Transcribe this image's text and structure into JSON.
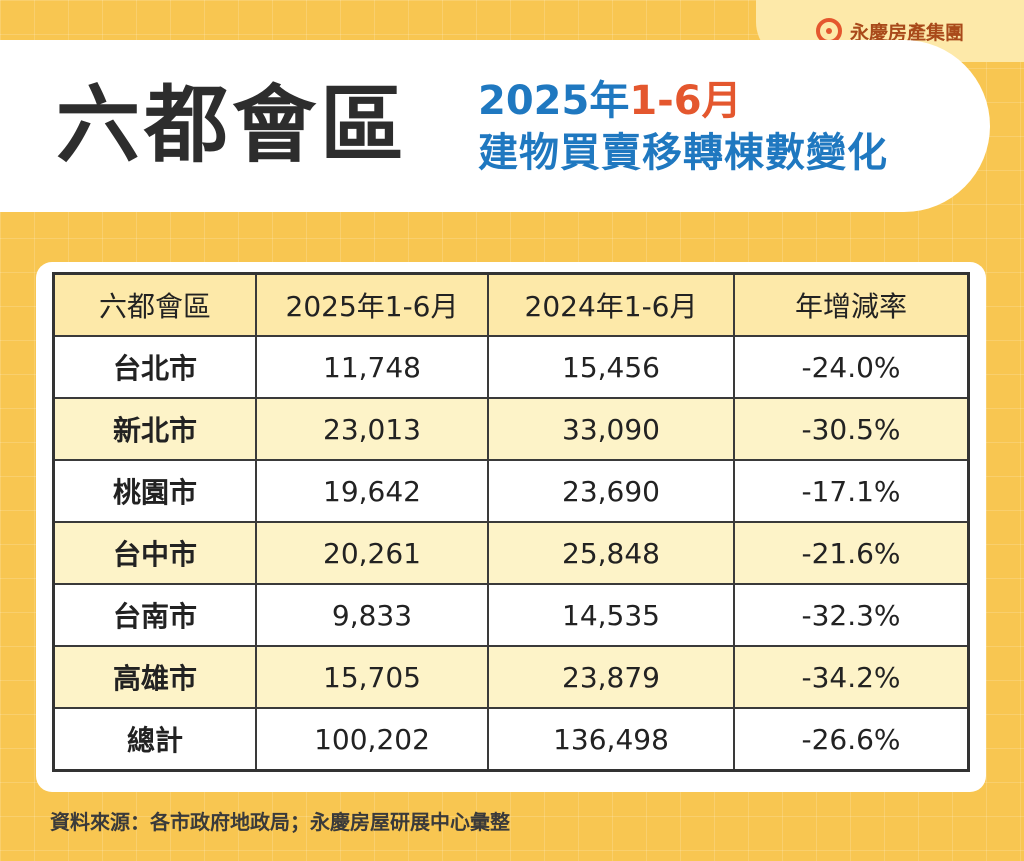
{
  "brand": {
    "name": "永慶房產集團",
    "icon": "yongqing-logo-icon"
  },
  "header": {
    "title": "六都會區",
    "subtitle_period_year": "2025年",
    "subtitle_period_range": "1-6月",
    "subtitle_line2": "建物買賣移轉棟數變化"
  },
  "table": {
    "columns": [
      "六都會區",
      "2025年1-6月",
      "2024年1-6月",
      "年增減率"
    ],
    "rows": [
      {
        "city": "台北市",
        "y2025": "11,748",
        "y2024": "15,456",
        "change": "-24.0%"
      },
      {
        "city": "新北市",
        "y2025": "23,013",
        "y2024": "33,090",
        "change": "-30.5%"
      },
      {
        "city": "桃園市",
        "y2025": "19,642",
        "y2024": "23,690",
        "change": "-17.1%"
      },
      {
        "city": "台中市",
        "y2025": "20,261",
        "y2024": "25,848",
        "change": "-21.6%"
      },
      {
        "city": "台南市",
        "y2025": "9,833",
        "y2024": "14,535",
        "change": "-32.3%"
      },
      {
        "city": "高雄市",
        "y2025": "15,705",
        "y2024": "23,879",
        "change": "-34.2%"
      },
      {
        "city": "總計",
        "y2025": "100,202",
        "y2024": "136,498",
        "change": "-26.6%"
      }
    ]
  },
  "source": "資料來源：各市政府地政局；永慶房屋研展中心彙整",
  "colors": {
    "background": "#f8c651",
    "title_blue": "#1f78c0",
    "accent_orange": "#e4572e",
    "header_cell": "#fde9a9",
    "shaded_row": "#fdf3c8"
  }
}
